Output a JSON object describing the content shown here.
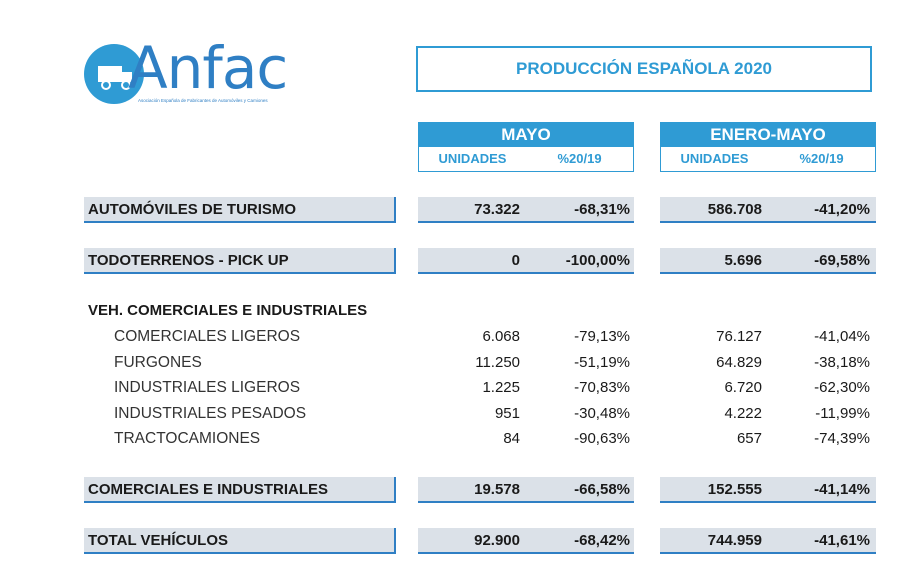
{
  "logo": {
    "name": "Anfac",
    "subtitle": "Asociación Española de Fabricantes de Automóviles y Camiones"
  },
  "title": "PRODUCCIÓN ESPAÑOLA 2020",
  "headers": {
    "mayo": "MAYO",
    "enero_mayo": "ENERO-MAYO",
    "unidades": "UNIDADES",
    "pct": "%20/19"
  },
  "rows": {
    "turismo": {
      "label": "AUTOMÓVILES DE TURISMO",
      "mayo_u": "73.322",
      "mayo_p": "-68,31%",
      "em_u": "586.708",
      "em_p": "-41,20%"
    },
    "todoterrenos": {
      "label": "TODOTERRENOS - PICK UP",
      "mayo_u": "0",
      "mayo_p": "-100,00%",
      "em_u": "5.696",
      "em_p": "-69,58%"
    },
    "veh_header": "VEH. COMERCIALES E INDUSTRIALES",
    "sub": [
      {
        "label": "COMERCIALES LIGEROS",
        "mayo_u": "6.068",
        "mayo_p": "-79,13%",
        "em_u": "76.127",
        "em_p": "-41,04%"
      },
      {
        "label": "FURGONES",
        "mayo_u": "11.250",
        "mayo_p": "-51,19%",
        "em_u": "64.829",
        "em_p": "-38,18%"
      },
      {
        "label": "INDUSTRIALES LIGEROS",
        "mayo_u": "1.225",
        "mayo_p": "-70,83%",
        "em_u": "6.720",
        "em_p": "-62,30%"
      },
      {
        "label": "INDUSTRIALES PESADOS",
        "mayo_u": "951",
        "mayo_p": "-30,48%",
        "em_u": "4.222",
        "em_p": "-11,99%"
      },
      {
        "label": "TRACTOCAMIONES",
        "mayo_u": "84",
        "mayo_p": "-90,63%",
        "em_u": "657",
        "em_p": "-74,39%"
      }
    ],
    "comerciales": {
      "label": "COMERCIALES E INDUSTRIALES",
      "mayo_u": "19.578",
      "mayo_p": "-66,58%",
      "em_u": "152.555",
      "em_p": "-41,14%"
    },
    "total": {
      "label": "TOTAL VEHÍCULOS",
      "mayo_u": "92.900",
      "mayo_p": "-68,42%",
      "em_u": "744.959",
      "em_p": "-41,61%"
    }
  }
}
